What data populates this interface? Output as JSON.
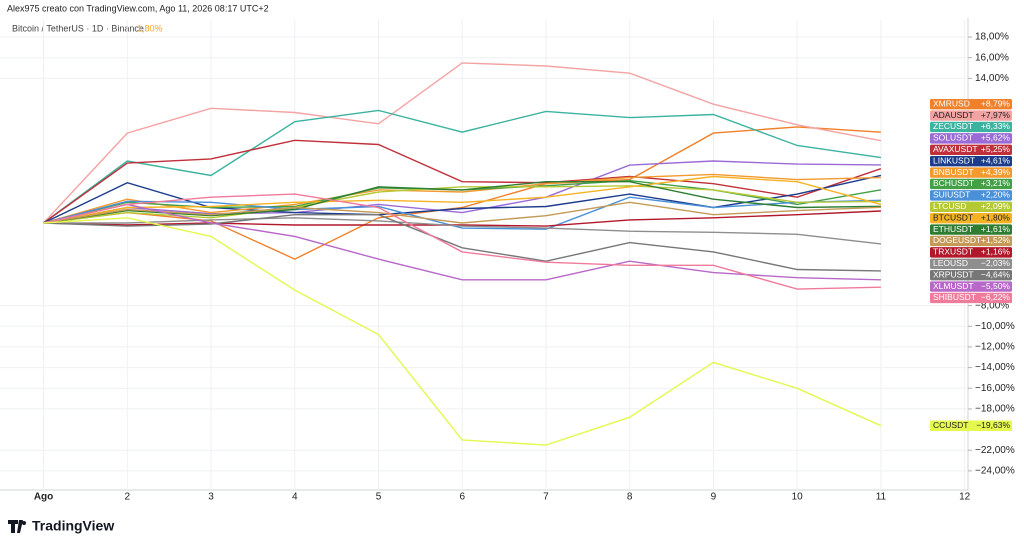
{
  "chart_data": {
    "type": "line",
    "attribution": "Alex975 creato con TradingView.com, Ago 11, 2026 08:17 UTC+2",
    "title": "Bitcoin / TetherUS · 1D · Binance",
    "title_value": "1,80%",
    "brand": "TradingView",
    "x": [
      1,
      2,
      3,
      4,
      5,
      6,
      7,
      8,
      9,
      10,
      11
    ],
    "xlim": [
      0.48,
      12.04
    ],
    "xticks": [
      {
        "value": 1,
        "label": "Ago"
      },
      2,
      3,
      4,
      5,
      6,
      7,
      8,
      9,
      10,
      11,
      12
    ],
    "ylim": [
      -25.85,
      19.65
    ],
    "yticks": [
      {
        "value": 18,
        "label": "18,00%"
      },
      {
        "value": 16,
        "label": "16,00%"
      },
      {
        "value": 14,
        "label": "14,00%"
      },
      {
        "value": -8,
        "label": "−8,00%"
      },
      {
        "value": -10,
        "label": "−10,00%"
      },
      {
        "value": -12,
        "label": "−12,00%"
      },
      {
        "value": -14,
        "label": "−14,00%"
      },
      {
        "value": -16,
        "label": "−16,00%"
      },
      {
        "value": -18,
        "label": "−18,00%"
      },
      {
        "value": -22,
        "label": "−22,00%"
      },
      {
        "value": -24,
        "label": "−24,00%"
      }
    ],
    "grid": true,
    "series": [
      {
        "name": "XMRUSD",
        "color": "#f0802a",
        "values": [
          0,
          1,
          0.2,
          -3.5,
          0.5,
          1.5,
          3.8,
          4.2,
          8.7,
          9.3,
          8.79
        ],
        "value_labels": [
          null,
          null,
          null,
          null,
          null,
          null,
          null,
          null,
          null,
          null,
          "+8,79%"
        ]
      },
      {
        "name": "ADAUSDT",
        "color": "#f4a3a3",
        "values": [
          0,
          8.7,
          11.1,
          10.7,
          9.6,
          15.5,
          15.2,
          14.5,
          11.5,
          9.5,
          7.97
        ],
        "value_labels": [
          null,
          null,
          null,
          null,
          null,
          null,
          null,
          null,
          null,
          null,
          "+7,97%"
        ]
      },
      {
        "name": "ZECUSDT",
        "color": "#3bb3a0",
        "values": [
          0,
          6.0,
          4.6,
          9.8,
          10.9,
          8.8,
          10.8,
          10.2,
          10.5,
          7.5,
          6.33
        ],
        "value_labels": [
          null,
          null,
          null,
          null,
          null,
          null,
          null,
          null,
          null,
          null,
          "+6,33%"
        ]
      },
      {
        "name": "SOLUSDT",
        "color": "#9a6ad6",
        "values": [
          0,
          1.5,
          0.9,
          1.0,
          1.8,
          1.0,
          2.5,
          5.6,
          6.0,
          5.7,
          5.62
        ],
        "value_labels": [
          null,
          null,
          null,
          null,
          null,
          null,
          null,
          null,
          null,
          null,
          "+5,62%"
        ]
      },
      {
        "name": "AVAXUSDT",
        "color": "#c0303a",
        "values": [
          0,
          5.8,
          6.2,
          8.0,
          7.6,
          4.0,
          3.9,
          4.5,
          3.8,
          2.5,
          5.25
        ],
        "value_labels": [
          null,
          null,
          null,
          null,
          null,
          null,
          null,
          null,
          null,
          null,
          "+5,25%"
        ]
      },
      {
        "name": "LINKUSDT",
        "color": "#1c3c8c",
        "values": [
          0,
          3.9,
          1.5,
          1.0,
          0.8,
          1.4,
          1.6,
          2.8,
          1.5,
          2.8,
          4.61
        ],
        "value_labels": [
          null,
          null,
          null,
          null,
          null,
          null,
          null,
          null,
          null,
          null,
          "+4,61%"
        ]
      },
      {
        "name": "BNBUSDT",
        "color": "#f29a2e",
        "values": [
          0,
          2.3,
          1.0,
          1.8,
          3.2,
          3.0,
          3.8,
          4.4,
          4.7,
          4.2,
          4.39
        ],
        "value_labels": [
          null,
          null,
          null,
          null,
          null,
          null,
          null,
          null,
          null,
          null,
          "+4,39%"
        ]
      },
      {
        "name": "BCHUSDT",
        "color": "#43a047",
        "values": [
          0,
          2.0,
          1.5,
          1.6,
          3.4,
          3.2,
          3.6,
          4.1,
          3.2,
          1.8,
          3.21
        ],
        "value_labels": [
          null,
          null,
          null,
          null,
          null,
          null,
          null,
          null,
          null,
          null,
          "+3,21%"
        ]
      },
      {
        "name": "SUIUSDT",
        "color": "#4a90d9",
        "values": [
          0,
          2.1,
          2.0,
          1.3,
          1.6,
          -0.5,
          -0.6,
          2.5,
          1.5,
          2.0,
          2.2
        ],
        "value_labels": [
          null,
          null,
          null,
          null,
          null,
          null,
          null,
          null,
          null,
          null,
          "+2,20%"
        ]
      },
      {
        "name": "LTCUSD",
        "color": "#b5c934",
        "values": [
          0,
          1.0,
          0.5,
          1.5,
          3.0,
          3.5,
          3.5,
          3.6,
          3.2,
          2.0,
          2.09
        ],
        "value_labels": [
          null,
          null,
          null,
          null,
          null,
          null,
          null,
          null,
          null,
          null,
          "+2,09%"
        ]
      },
      {
        "name": "BTCUSDT",
        "color": "#f5b324",
        "values": [
          0,
          1.5,
          1.6,
          2.0,
          2.2,
          2.0,
          2.5,
          3.5,
          4.5,
          4.0,
          1.8
        ],
        "value_labels": [
          null,
          null,
          null,
          null,
          null,
          null,
          null,
          null,
          null,
          null,
          "+1,80%"
        ]
      },
      {
        "name": "ETHUSDT",
        "color": "#2e7d32",
        "values": [
          0,
          1.2,
          0.7,
          1.3,
          3.5,
          3.2,
          4.0,
          4.0,
          2.3,
          1.5,
          1.61
        ],
        "value_labels": [
          null,
          null,
          null,
          null,
          null,
          null,
          null,
          null,
          null,
          null,
          "+1,61%"
        ]
      },
      {
        "name": "DOGEUSDT",
        "color": "#c49a56",
        "values": [
          0,
          1.3,
          0.8,
          1.5,
          1.0,
          0,
          0.7,
          2.0,
          0.8,
          1.2,
          1.52
        ],
        "value_labels": [
          null,
          null,
          null,
          null,
          null,
          null,
          null,
          null,
          null,
          null,
          "+1,52%"
        ]
      },
      {
        "name": "TRXUSDT",
        "color": "#b2182b",
        "values": [
          0,
          -0.2,
          0,
          -0.2,
          -0.2,
          -0.2,
          -0.3,
          0.3,
          0.5,
          0.8,
          1.16
        ],
        "value_labels": [
          null,
          null,
          null,
          null,
          null,
          null,
          null,
          null,
          null,
          null,
          "+1,16%"
        ]
      },
      {
        "name": "LEOUSD",
        "color": "#8e8e8e",
        "values": [
          0,
          0,
          0.3,
          0.5,
          0.2,
          -0.3,
          -0.5,
          -0.8,
          -0.9,
          -1.1,
          -2.03
        ],
        "value_labels": [
          null,
          null,
          null,
          null,
          null,
          null,
          null,
          null,
          null,
          null,
          "−2,03%"
        ]
      },
      {
        "name": "XRPUSDT",
        "color": "#777777",
        "values": [
          0,
          -0.3,
          -0.1,
          0.8,
          0.8,
          -2.4,
          -3.7,
          -1.9,
          -2.8,
          -4.5,
          -4.64
        ],
        "value_labels": [
          null,
          null,
          null,
          null,
          null,
          null,
          null,
          null,
          null,
          null,
          "−4,64%"
        ]
      },
      {
        "name": "XLMUSDT",
        "color": "#b868c8",
        "values": [
          0,
          1.8,
          0,
          -1.3,
          -3.5,
          -5.5,
          -5.5,
          -3.7,
          -4.8,
          -5.3,
          -5.5
        ],
        "value_labels": [
          null,
          null,
          null,
          null,
          null,
          null,
          null,
          null,
          null,
          null,
          "−5,50%"
        ]
      },
      {
        "name": "SHIBUSDT",
        "color": "#f07a9a",
        "values": [
          0,
          1.8,
          2.5,
          2.8,
          1.5,
          -2.8,
          -3.8,
          -4.1,
          -4.1,
          -6.4,
          -6.22
        ],
        "value_labels": [
          null,
          null,
          null,
          null,
          null,
          null,
          null,
          null,
          null,
          null,
          "−6,22%"
        ]
      },
      {
        "name": "CCUSDT",
        "color": "#e4f84e",
        "values": [
          0,
          0.5,
          -1.3,
          -6.5,
          -10.8,
          -21,
          -21.5,
          -18.8,
          -13.5,
          -16,
          -19.63
        ],
        "value_labels": [
          null,
          null,
          null,
          null,
          null,
          null,
          null,
          null,
          null,
          null,
          "−19,63%"
        ]
      }
    ]
  }
}
